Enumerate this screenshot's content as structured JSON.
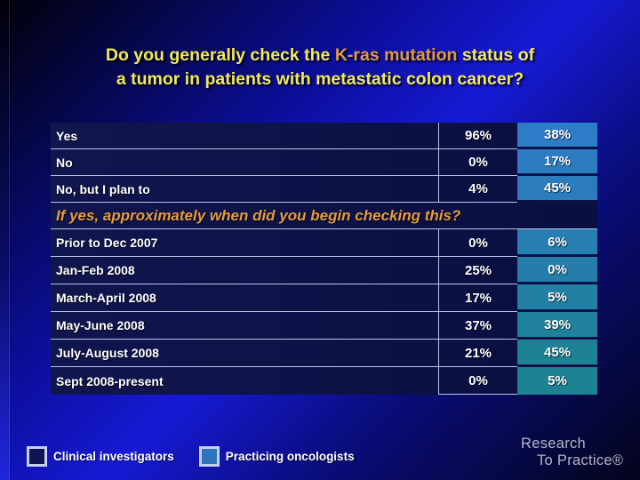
{
  "title": {
    "line1_pre": "Do you generally check the ",
    "line1_highlight": "K-ras mutation",
    "line1_post": " status of",
    "line2": "a tumor in patients with metastatic colon cancer?"
  },
  "table": {
    "section1": [
      {
        "label": "Yes",
        "ci": "96%",
        "po": "38%"
      },
      {
        "label": "No",
        "ci": "0%",
        "po": "17%"
      },
      {
        "label": "No, but I plan to",
        "ci": "4%",
        "po": "45%"
      }
    ],
    "subtitle": "If yes, approximately when did you begin checking this?",
    "section2": [
      {
        "label": "Prior to Dec 2007",
        "ci": "0%",
        "po": "6%"
      },
      {
        "label": "Jan-Feb 2008",
        "ci": "25%",
        "po": "0%"
      },
      {
        "label": "March-April 2008",
        "ci": "17%",
        "po": "5%"
      },
      {
        "label": "May-June 2008",
        "ci": "37%",
        "po": "39%"
      },
      {
        "label": "July-August 2008",
        "ci": "21%",
        "po": "45%"
      },
      {
        "label": "Sept 2008-present",
        "ci": "0%",
        "po": "5%"
      }
    ]
  },
  "legend": {
    "items": [
      {
        "label": "Clinical investigators",
        "color": "#0e1452"
      },
      {
        "label": "Practicing oncologists",
        "color": "#2e74bc"
      }
    ]
  },
  "logo": {
    "line1": "Research",
    "line2": "To Practice®"
  },
  "colors": {
    "background_bright_blue": "#171ad4",
    "row_navy": "#0c1147",
    "po_column_top": "#2e7bc8",
    "po_column_bottom": "#1e8292",
    "grid_line": "#b9c4e8",
    "title_yellow": "#f0e95c",
    "highlight_orange": "#e09a44",
    "subtitle_orange": "#e79b3e"
  }
}
